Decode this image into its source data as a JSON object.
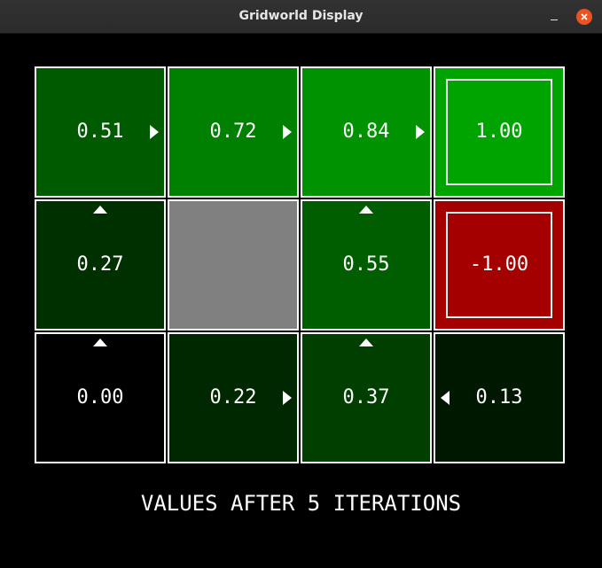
{
  "window": {
    "title": "Gridworld Display"
  },
  "grid": {
    "rows": [
      [
        {
          "value": "0.51",
          "color": "#005a00",
          "arrow": "right"
        },
        {
          "value": "0.72",
          "color": "#008000",
          "arrow": "right"
        },
        {
          "value": "0.84",
          "color": "#009200",
          "arrow": "right"
        },
        {
          "value": "1.00",
          "color": "#00a400",
          "arrow": null,
          "terminal": true
        }
      ],
      [
        {
          "value": "0.27",
          "color": "#003000",
          "arrow": "up"
        },
        {
          "value": "",
          "color": "#808080",
          "arrow": null,
          "wall": true
        },
        {
          "value": "0.55",
          "color": "#005e00",
          "arrow": "up"
        },
        {
          "value": "-1.00",
          "color": "#a40000",
          "arrow": null,
          "terminal": true
        }
      ],
      [
        {
          "value": "0.00",
          "color": "#000000",
          "arrow": "up"
        },
        {
          "value": "0.22",
          "color": "#002800",
          "arrow": "right"
        },
        {
          "value": "0.37",
          "color": "#003f00",
          "arrow": "up"
        },
        {
          "value": "0.13",
          "color": "#001800",
          "arrow": "left"
        }
      ]
    ]
  },
  "footer": {
    "text": "VALUES AFTER 5 ITERATIONS"
  }
}
